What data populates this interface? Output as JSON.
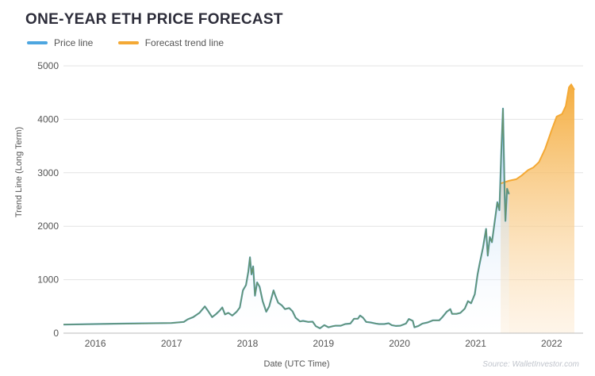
{
  "chart_data": {
    "type": "area",
    "title": "ONE-YEAR ETH PRICE FORECAST",
    "xlabel": "Date (UTC Time)",
    "ylabel": "Trend Line (Long Term)",
    "source": "Source: WalletInvestor.com",
    "xlim": [
      "2015-08-01",
      "2022-06-01"
    ],
    "ylim": [
      0,
      5000
    ],
    "x_ticks": [
      "2016",
      "2017",
      "2018",
      "2019",
      "2020",
      "2021",
      "2022"
    ],
    "y_ticks": [
      0,
      1000,
      2000,
      3000,
      4000,
      5000
    ],
    "grid": true,
    "legend_position": "top-left",
    "series": [
      {
        "name": "Price line",
        "color": "#4da6e0",
        "points": [
          [
            "2015-08-01",
            160
          ],
          [
            "2016-01-01",
            170
          ],
          [
            "2016-06-01",
            180
          ],
          [
            "2017-01-01",
            190
          ],
          [
            "2017-03-01",
            210
          ],
          [
            "2017-03-20",
            260
          ],
          [
            "2017-04-15",
            300
          ],
          [
            "2017-05-15",
            380
          ],
          [
            "2017-06-10",
            500
          ],
          [
            "2017-06-25",
            420
          ],
          [
            "2017-07-15",
            300
          ],
          [
            "2017-08-01",
            350
          ],
          [
            "2017-08-20",
            420
          ],
          [
            "2017-09-02",
            480
          ],
          [
            "2017-09-15",
            350
          ],
          [
            "2017-10-01",
            380
          ],
          [
            "2017-10-20",
            330
          ],
          [
            "2017-11-10",
            400
          ],
          [
            "2017-11-25",
            480
          ],
          [
            "2017-12-10",
            800
          ],
          [
            "2017-12-25",
            900
          ],
          [
            "2018-01-05",
            1150
          ],
          [
            "2018-01-13",
            1420
          ],
          [
            "2018-01-20",
            1100
          ],
          [
            "2018-01-28",
            1250
          ],
          [
            "2018-02-06",
            700
          ],
          [
            "2018-02-16",
            950
          ],
          [
            "2018-02-28",
            870
          ],
          [
            "2018-03-15",
            600
          ],
          [
            "2018-04-01",
            400
          ],
          [
            "2018-04-15",
            500
          ],
          [
            "2018-05-06",
            800
          ],
          [
            "2018-05-15",
            700
          ],
          [
            "2018-05-28",
            570
          ],
          [
            "2018-06-15",
            520
          ],
          [
            "2018-06-30",
            450
          ],
          [
            "2018-07-20",
            470
          ],
          [
            "2018-08-05",
            410
          ],
          [
            "2018-08-20",
            290
          ],
          [
            "2018-09-10",
            220
          ],
          [
            "2018-09-25",
            230
          ],
          [
            "2018-10-20",
            210
          ],
          [
            "2018-11-10",
            215
          ],
          [
            "2018-11-25",
            130
          ],
          [
            "2018-12-15",
            90
          ],
          [
            "2019-01-05",
            150
          ],
          [
            "2019-01-25",
            110
          ],
          [
            "2019-02-15",
            130
          ],
          [
            "2019-03-01",
            140
          ],
          [
            "2019-03-25",
            140
          ],
          [
            "2019-04-15",
            170
          ],
          [
            "2019-05-10",
            180
          ],
          [
            "2019-05-28",
            270
          ],
          [
            "2019-06-15",
            270
          ],
          [
            "2019-06-26",
            330
          ],
          [
            "2019-07-10",
            290
          ],
          [
            "2019-07-25",
            210
          ],
          [
            "2019-08-15",
            200
          ],
          [
            "2019-09-10",
            180
          ],
          [
            "2019-09-25",
            170
          ],
          [
            "2019-10-20",
            170
          ],
          [
            "2019-11-10",
            185
          ],
          [
            "2019-11-25",
            150
          ],
          [
            "2019-12-15",
            135
          ],
          [
            "2020-01-05",
            140
          ],
          [
            "2020-02-01",
            180
          ],
          [
            "2020-02-15",
            265
          ],
          [
            "2020-03-05",
            230
          ],
          [
            "2020-03-13",
            110
          ],
          [
            "2020-04-01",
            135
          ],
          [
            "2020-04-20",
            180
          ],
          [
            "2020-05-15",
            200
          ],
          [
            "2020-06-10",
            240
          ],
          [
            "2020-07-10",
            240
          ],
          [
            "2020-07-25",
            300
          ],
          [
            "2020-08-15",
            400
          ],
          [
            "2020-09-01",
            450
          ],
          [
            "2020-09-10",
            360
          ],
          [
            "2020-10-01",
            360
          ],
          [
            "2020-10-20",
            380
          ],
          [
            "2020-11-10",
            460
          ],
          [
            "2020-11-25",
            600
          ],
          [
            "2020-12-10",
            560
          ],
          [
            "2020-12-28",
            730
          ],
          [
            "2021-01-10",
            1100
          ],
          [
            "2021-01-20",
            1300
          ],
          [
            "2021-02-05",
            1600
          ],
          [
            "2021-02-20",
            1950
          ],
          [
            "2021-02-28",
            1450
          ],
          [
            "2021-03-10",
            1800
          ],
          [
            "2021-03-20",
            1700
          ],
          [
            "2021-04-03",
            2100
          ],
          [
            "2021-04-15",
            2450
          ],
          [
            "2021-04-25",
            2300
          ],
          [
            "2021-05-04",
            3400
          ],
          [
            "2021-05-12",
            4200
          ],
          [
            "2021-05-20",
            2600
          ],
          [
            "2021-05-24",
            2100
          ],
          [
            "2021-06-01",
            2700
          ],
          [
            "2021-06-10",
            2600
          ]
        ]
      },
      {
        "name": "Forecast trend line",
        "color": "#f4a935",
        "points": [
          [
            "2021-05-01",
            2800
          ],
          [
            "2021-06-10",
            2850
          ],
          [
            "2021-07-15",
            2880
          ],
          [
            "2021-08-10",
            2950
          ],
          [
            "2021-09-10",
            3050
          ],
          [
            "2021-10-05",
            3100
          ],
          [
            "2021-11-01",
            3200
          ],
          [
            "2021-12-01",
            3450
          ],
          [
            "2022-01-01",
            3800
          ],
          [
            "2022-01-25",
            4050
          ],
          [
            "2022-02-20",
            4100
          ],
          [
            "2022-03-10",
            4250
          ],
          [
            "2022-03-25",
            4600
          ],
          [
            "2022-04-05",
            4650
          ],
          [
            "2022-04-20",
            4550
          ]
        ]
      }
    ]
  }
}
